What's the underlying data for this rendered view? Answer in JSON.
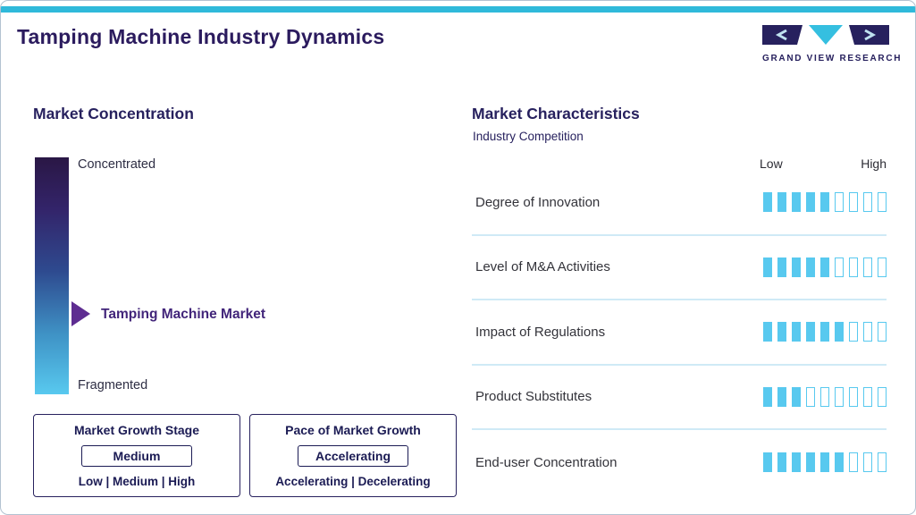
{
  "colors": {
    "accent_cyan": "#2fb9da",
    "segment_blue": "#58c9ef",
    "brand_navy": "#27215e",
    "title_purple": "#2b1b5e",
    "marker_purple": "#5e2d91",
    "gradient_top": "#2a1745",
    "gradient_bottom": "#58c9ef",
    "divider_blue": "#cfeaf6"
  },
  "header": {
    "title": "Tamping Machine Industry Dynamics",
    "logo_text": "GRAND VIEW RESEARCH"
  },
  "market_concentration": {
    "heading": "Market Concentration",
    "scale_top_label": "Concentrated",
    "scale_bottom_label": "Fragmented",
    "marker_label": "Tamping Machine Market"
  },
  "growth_stage_box": {
    "title": "Market Growth Stage",
    "value": "Medium",
    "options": "Low | Medium | High"
  },
  "pace_box": {
    "title": "Pace of Market Growth",
    "value": "Accelerating",
    "options": "Accelerating | Decelerating"
  },
  "market_characteristics": {
    "heading": "Market Characteristics",
    "subheading": "Industry Competition",
    "scale_low": "Low",
    "scale_high": "High",
    "rows": [
      {
        "label": "Degree of Innovation",
        "filled": 5,
        "total": 9
      },
      {
        "label": "Level of M&A Activities",
        "filled": 5,
        "total": 9
      },
      {
        "label": "Impact of Regulations",
        "filled": 6,
        "total": 9
      },
      {
        "label": "Product Substitutes",
        "filled": 3,
        "total": 9
      },
      {
        "label": "End-user Concentration",
        "filled": 6,
        "total": 9
      }
    ]
  },
  "chart_data": {
    "type": "bar",
    "title": "Market Characteristics — Industry Competition",
    "categories": [
      "Degree of Innovation",
      "Level of M&A Activities",
      "Impact of Regulations",
      "Product Substitutes",
      "End-user Concentration"
    ],
    "values": [
      5,
      5,
      6,
      3,
      6
    ],
    "scale": {
      "min": 0,
      "max": 9,
      "low_label": "Low",
      "high_label": "High"
    },
    "legend_position": "none",
    "grid": false,
    "notes": {
      "market_concentration_axis": [
        "Concentrated",
        "Fragmented"
      ],
      "market_position_marker": "Tamping Machine Market",
      "market_growth_stage": "Medium",
      "pace_of_market_growth": "Accelerating"
    }
  }
}
